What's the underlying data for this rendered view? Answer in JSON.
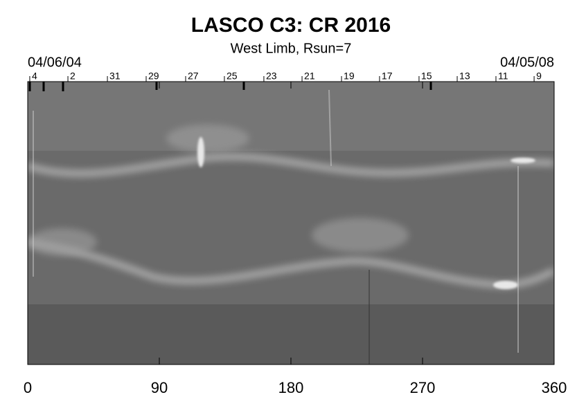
{
  "chart_data": {
    "type": "synoptic-map",
    "title": "LASCO C3: CR 2016",
    "subtitle": "West Limb, Rsun=7",
    "start_date": "04/06/04",
    "end_date": "04/05/08",
    "xlim": [
      0,
      360
    ],
    "xticks": [
      0,
      90,
      180,
      270,
      360
    ],
    "top_ticks": [
      {
        "value": 1.4,
        "label": "4"
      },
      {
        "value": 27.5,
        "label": "2"
      },
      {
        "value": 54.5,
        "label": "31"
      },
      {
        "value": 81,
        "label": "29"
      },
      {
        "value": 108,
        "label": "27"
      },
      {
        "value": 134.5,
        "label": "25"
      },
      {
        "value": 161.5,
        "label": "23"
      },
      {
        "value": 187.6,
        "label": "21"
      },
      {
        "value": 214.6,
        "label": "19"
      },
      {
        "value": 240.6,
        "label": "17"
      },
      {
        "value": 267.6,
        "label": "15"
      },
      {
        "value": 293.7,
        "label": "13"
      },
      {
        "value": 320.2,
        "label": "11"
      },
      {
        "value": 346.3,
        "label": "9"
      }
    ]
  }
}
